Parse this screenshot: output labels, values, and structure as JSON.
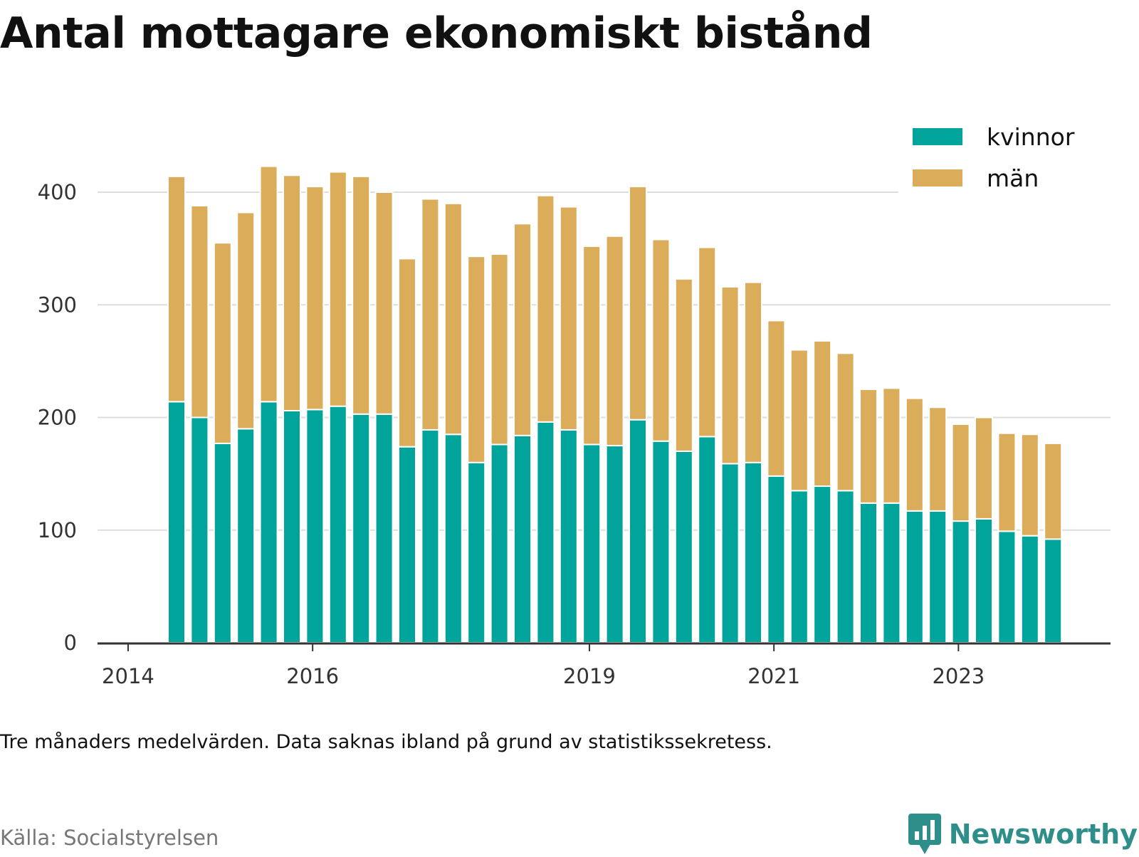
{
  "header": {
    "title": "Antal mottagare ekonomiskt bistånd"
  },
  "footer": {
    "note": "Tre månaders medelvärden. Data saknas ibland på grund av statistikssekretess.",
    "source": "Källa: Socialstyrelsen",
    "brand": "Newsworthy",
    "brand_icon": "bar-chart-speech-icon"
  },
  "colors": {
    "kvinnor": "#00a49a",
    "man": "#dbad5a",
    "grid": "#dddddd",
    "axis": "#333333",
    "brand": "#2e8f8a"
  },
  "chart_data": {
    "type": "bar",
    "stacked": true,
    "title": "Antal mottagare ekonomiskt bistånd",
    "xlabel": "",
    "ylabel": "",
    "ylim": [
      0,
      400
    ],
    "yticks": [
      0,
      100,
      200,
      300,
      400
    ],
    "grid": true,
    "legend_position": "top-right",
    "x_ticks": [
      {
        "label": "2014",
        "bar_offset": -2.1
      },
      {
        "label": "2016",
        "bar_offset": 5.9
      },
      {
        "label": "2019",
        "bar_offset": 17.9
      },
      {
        "label": "2021",
        "bar_offset": 25.9
      },
      {
        "label": "2023",
        "bar_offset": 33.9
      }
    ],
    "series": [
      {
        "name": "kvinnor",
        "values": [
          214,
          200,
          177,
          190,
          214,
          206,
          207,
          210,
          203,
          203,
          174,
          189,
          185,
          160,
          176,
          184,
          196,
          189,
          176,
          175,
          198,
          179,
          170,
          183,
          159,
          160,
          148,
          135,
          139,
          135,
          124,
          124,
          117,
          117,
          108,
          110,
          99,
          95,
          92
        ]
      },
      {
        "name": "män",
        "values": [
          200,
          188,
          178,
          192,
          209,
          209,
          198,
          208,
          211,
          197,
          167,
          205,
          205,
          183,
          169,
          188,
          201,
          198,
          176,
          186,
          207,
          179,
          153,
          168,
          157,
          160,
          138,
          125,
          129,
          122,
          101,
          102,
          100,
          92,
          86,
          90,
          87,
          90,
          85
        ]
      }
    ]
  }
}
